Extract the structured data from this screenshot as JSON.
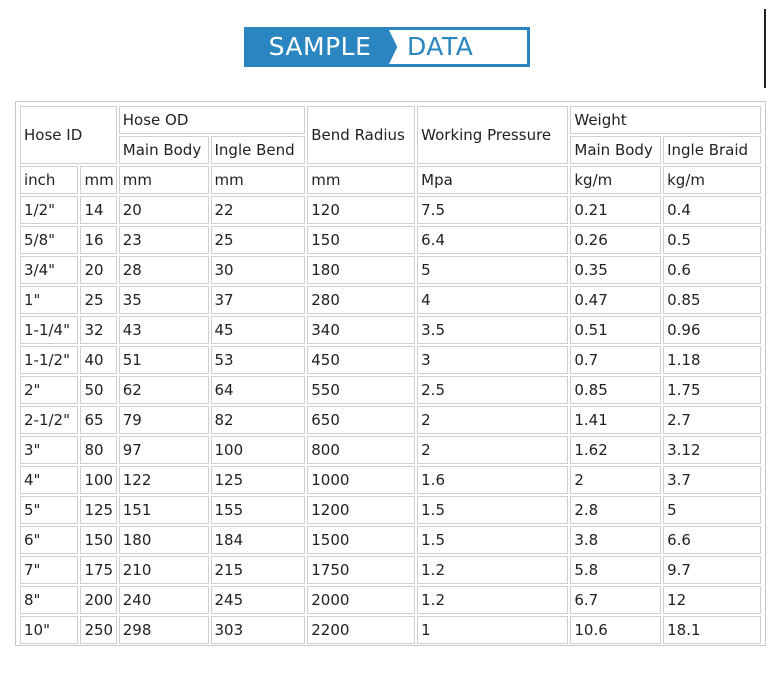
{
  "banner": {
    "left_text": "SAMPLE",
    "right_text": "DATA"
  },
  "table": {
    "header": {
      "hose_id": "Hose ID",
      "hose_od": "Hose OD",
      "od_main_body": "Main Body",
      "od_ingle_bend": "Ingle Bend",
      "bend_radius": "Bend Radius",
      "working_pressure": "Working Pressure",
      "weight": "Weight",
      "w_main_body": "Main Body",
      "w_ingle_braid": "Ingle Braid"
    },
    "units": [
      "inch",
      "mm",
      "mm",
      "mm",
      "mm",
      "Mpa",
      "kg/m",
      "kg/m"
    ],
    "rows": [
      [
        "1/2\"",
        "14",
        "20",
        "22",
        "120",
        "7.5",
        "0.21",
        "0.4"
      ],
      [
        "5/8\"",
        "16",
        "23",
        "25",
        "150",
        "6.4",
        "0.26",
        "0.5"
      ],
      [
        "3/4\"",
        "20",
        "28",
        "30",
        "180",
        "5",
        "0.35",
        "0.6"
      ],
      [
        "1\"",
        "25",
        "35",
        "37",
        "280",
        "4",
        "0.47",
        "0.85"
      ],
      [
        "1-1/4\"",
        "32",
        "43",
        "45",
        "340",
        "3.5",
        "0.51",
        "0.96"
      ],
      [
        "1-1/2\"",
        "40",
        "51",
        "53",
        "450",
        "3",
        "0.7",
        "1.18"
      ],
      [
        "2\"",
        "50",
        "62",
        "64",
        "550",
        "2.5",
        "0.85",
        "1.75"
      ],
      [
        "2-1/2\"",
        "65",
        "79",
        "82",
        "650",
        "2",
        "1.41",
        "2.7"
      ],
      [
        "3\"",
        "80",
        "97",
        "100",
        "800",
        "2",
        "1.62",
        "3.12"
      ],
      [
        "4\"",
        "100",
        "122",
        "125",
        "1000",
        "1.6",
        "2",
        "3.7"
      ],
      [
        "5\"",
        "125",
        "151",
        "155",
        "1200",
        "1.5",
        "2.8",
        "5"
      ],
      [
        "6\"",
        "150",
        "180",
        "184",
        "1500",
        "1.5",
        "3.8",
        "6.6"
      ],
      [
        "7\"",
        "175",
        "210",
        "215",
        "1750",
        "1.2",
        "5.8",
        "9.7"
      ],
      [
        "8\"",
        "200",
        "240",
        "245",
        "2000",
        "1.2",
        "6.7",
        "12"
      ],
      [
        "10\"",
        "250",
        "298",
        "303",
        "2200",
        "1",
        "10.6",
        "18.1"
      ]
    ]
  }
}
